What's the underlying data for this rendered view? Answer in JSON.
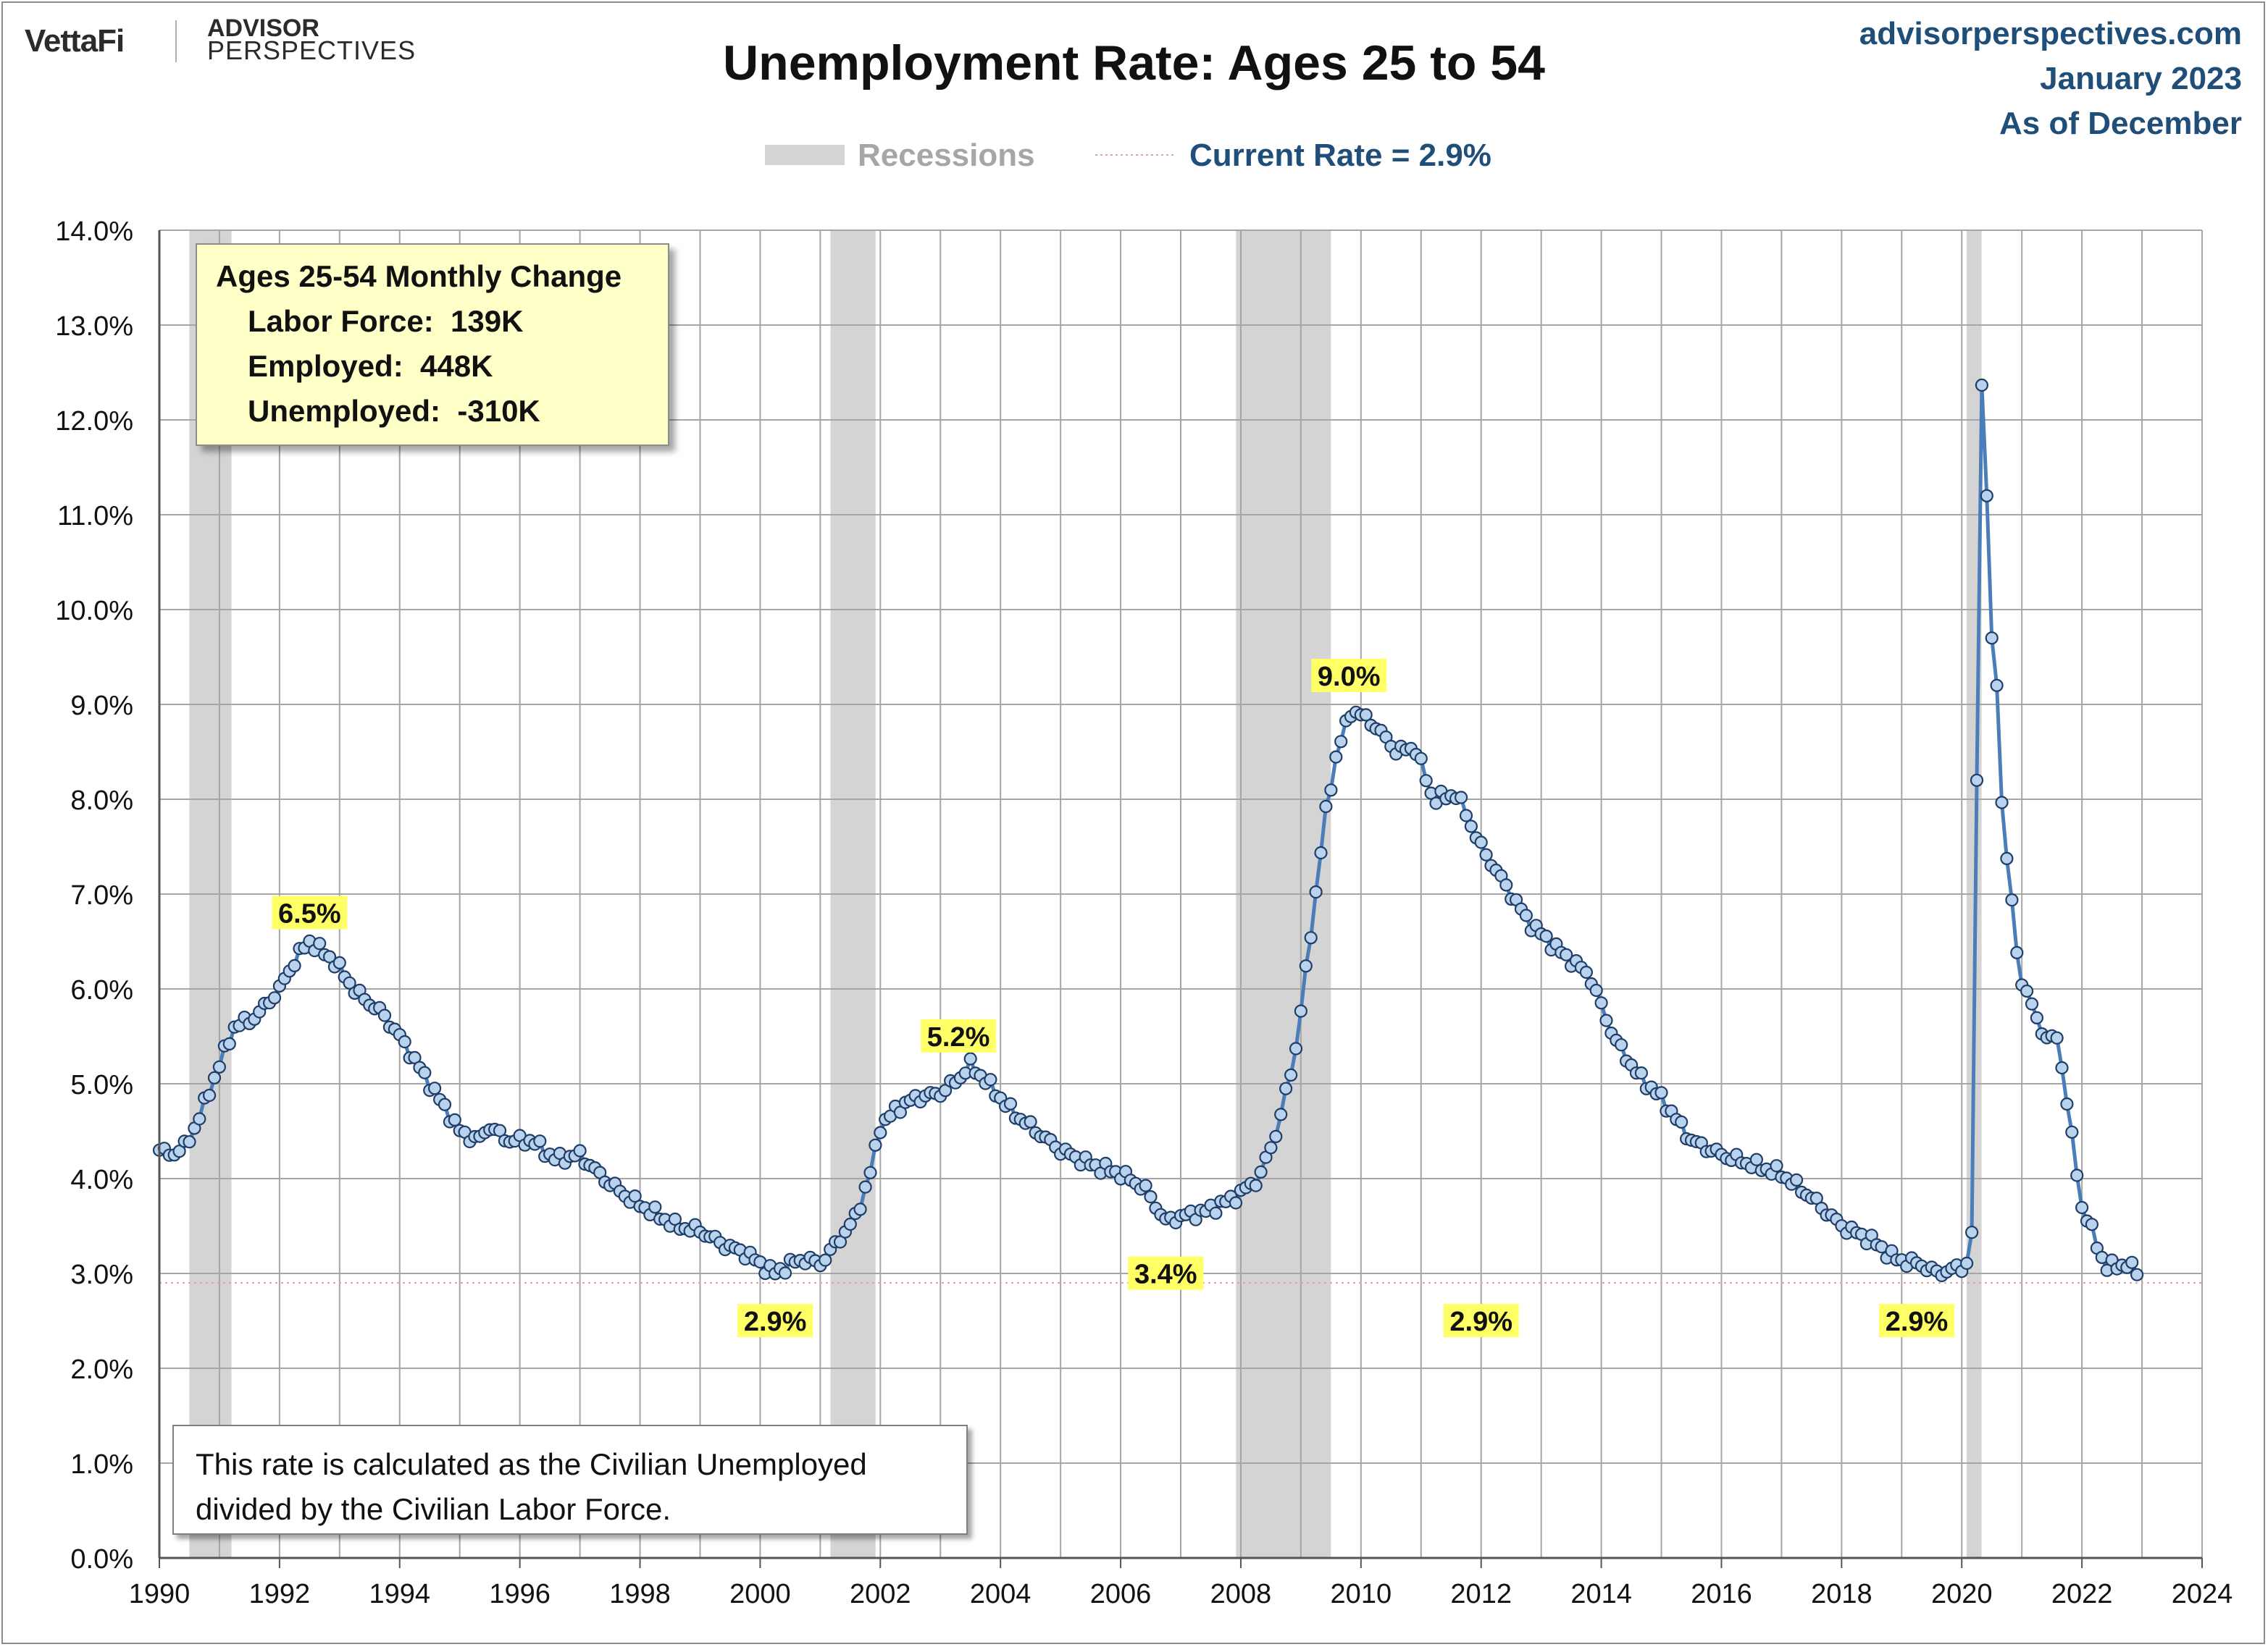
{
  "header": {
    "brand": "VettaFi",
    "partner_line1": "ADVISOR",
    "partner_line2": "PERSPECTIVES",
    "title": "Unemployment Rate: Ages 25 to 54",
    "source_site": "advisorperspectives.com",
    "source_date": "January 2023",
    "source_asof": "As of December"
  },
  "legend": {
    "recessions_label": "Recessions",
    "current_label": "Current Rate = 2.9%"
  },
  "info_box": {
    "title": "Ages 25-54 Monthly Change",
    "labor_force": "Labor Force:  139K",
    "employed": "Employed:  448K",
    "unemployed": "Unemployed:  -310K"
  },
  "note": {
    "line1": "This rate is calculated as the Civilian Unemployed",
    "line2": "divided by the Civilian Labor Force."
  },
  "colors": {
    "line": "#4a7ebb",
    "marker_fill": "#b9d3ee",
    "marker_stroke": "#1f3d66",
    "recession": "#d4d4d4",
    "gridline": "#a6a6a6",
    "current_rate_line": "#e0a0b0",
    "highlight_label_bg": "#ffff66",
    "source_text": "#1f4e79"
  },
  "chart_data": {
    "type": "line",
    "title": "Unemployment Rate: Ages 25 to 54",
    "xlabel": "",
    "ylabel": "",
    "xlim": [
      1990,
      2024
    ],
    "ylim": [
      0,
      14
    ],
    "x_ticks": [
      1990,
      1992,
      1994,
      1996,
      1998,
      2000,
      2002,
      2004,
      2006,
      2008,
      2010,
      2012,
      2014,
      2016,
      2018,
      2020,
      2022,
      2024
    ],
    "y_ticks": [
      "0.0%",
      "1.0%",
      "2.0%",
      "3.0%",
      "4.0%",
      "5.0%",
      "6.0%",
      "7.0%",
      "8.0%",
      "9.0%",
      "10.0%",
      "11.0%",
      "12.0%",
      "13.0%",
      "14.0%"
    ],
    "grid": true,
    "recessions": [
      [
        1990.5,
        1991.2
      ],
      [
        2001.17,
        2001.92
      ],
      [
        2007.92,
        2009.5
      ],
      [
        2020.08,
        2020.33
      ]
    ],
    "current_rate": 2.9,
    "annotations": [
      {
        "text": "6.5%",
        "x": 1992.5,
        "y": 6.5
      },
      {
        "text": "2.9%",
        "x": 2000.25,
        "y": 2.9
      },
      {
        "text": "5.2%",
        "x": 2003.3,
        "y": 5.2
      },
      {
        "text": "3.4%",
        "x": 2006.75,
        "y": 3.4
      },
      {
        "text": "9.0%",
        "x": 2009.8,
        "y": 9.0
      },
      {
        "text": "2.9%",
        "x": 2012.0,
        "y": 2.9
      },
      {
        "text": "2.9%",
        "x": 2019.25,
        "y": 2.9
      }
    ],
    "series": [
      {
        "name": "Unemployment Rate Ages 25-54 (monthly)",
        "start": 1990.0,
        "step_months": 1,
        "anchors": [
          [
            1990.0,
            4.3
          ],
          [
            1990.2,
            4.25
          ],
          [
            1990.45,
            4.35
          ],
          [
            1990.7,
            4.7
          ],
          [
            1991.0,
            5.2
          ],
          [
            1991.25,
            5.6
          ],
          [
            1991.6,
            5.7
          ],
          [
            1992.0,
            6.0
          ],
          [
            1992.3,
            6.35
          ],
          [
            1992.5,
            6.5
          ],
          [
            1992.9,
            6.3
          ],
          [
            1993.3,
            5.95
          ],
          [
            1993.7,
            5.75
          ],
          [
            1994.0,
            5.5
          ],
          [
            1994.3,
            5.2
          ],
          [
            1994.6,
            4.9
          ],
          [
            1995.0,
            4.5
          ],
          [
            1995.3,
            4.4
          ],
          [
            1995.5,
            4.55
          ],
          [
            1995.8,
            4.4
          ],
          [
            1996.2,
            4.4
          ],
          [
            1996.6,
            4.2
          ],
          [
            1997.0,
            4.25
          ],
          [
            1997.4,
            4.0
          ],
          [
            1997.8,
            3.8
          ],
          [
            1998.2,
            3.65
          ],
          [
            1998.6,
            3.5
          ],
          [
            1999.0,
            3.45
          ],
          [
            1999.4,
            3.3
          ],
          [
            1999.8,
            3.2
          ],
          [
            2000.0,
            3.1
          ],
          [
            2000.25,
            3.0
          ],
          [
            2000.5,
            3.1
          ],
          [
            2000.75,
            3.15
          ],
          [
            2001.0,
            3.1
          ],
          [
            2001.25,
            3.3
          ],
          [
            2001.6,
            3.6
          ],
          [
            2001.85,
            4.1
          ],
          [
            2002.0,
            4.55
          ],
          [
            2002.3,
            4.75
          ],
          [
            2002.6,
            4.85
          ],
          [
            2003.0,
            4.9
          ],
          [
            2003.3,
            5.05
          ],
          [
            2003.5,
            5.2
          ],
          [
            2003.8,
            5.0
          ],
          [
            2004.2,
            4.7
          ],
          [
            2004.6,
            4.5
          ],
          [
            2005.0,
            4.3
          ],
          [
            2005.5,
            4.15
          ],
          [
            2006.0,
            4.05
          ],
          [
            2006.4,
            3.9
          ],
          [
            2006.75,
            3.55
          ],
          [
            2007.0,
            3.6
          ],
          [
            2007.4,
            3.65
          ],
          [
            2007.9,
            3.8
          ],
          [
            2008.3,
            4.0
          ],
          [
            2008.6,
            4.5
          ],
          [
            2008.9,
            5.3
          ],
          [
            2009.15,
            6.5
          ],
          [
            2009.4,
            7.8
          ],
          [
            2009.6,
            8.5
          ],
          [
            2009.85,
            8.95
          ],
          [
            2010.2,
            8.8
          ],
          [
            2010.6,
            8.5
          ],
          [
            2010.9,
            8.55
          ],
          [
            2011.2,
            8.0
          ],
          [
            2011.6,
            8.05
          ],
          [
            2012.0,
            7.5
          ],
          [
            2012.4,
            7.1
          ],
          [
            2012.8,
            6.7
          ],
          [
            2013.3,
            6.4
          ],
          [
            2013.8,
            6.15
          ],
          [
            2014.2,
            5.5
          ],
          [
            2014.6,
            5.1
          ],
          [
            2015.0,
            4.85
          ],
          [
            2015.5,
            4.4
          ],
          [
            2016.0,
            4.25
          ],
          [
            2016.5,
            4.15
          ],
          [
            2017.0,
            4.05
          ],
          [
            2017.5,
            3.8
          ],
          [
            2018.0,
            3.5
          ],
          [
            2018.5,
            3.35
          ],
          [
            2018.9,
            3.15
          ],
          [
            2019.3,
            3.1
          ],
          [
            2019.6,
            3.0
          ],
          [
            2019.9,
            3.05
          ],
          [
            2020.1,
            3.1
          ],
          [
            2020.2,
            3.6
          ],
          [
            2020.3,
            12.8
          ],
          [
            2020.4,
            11.5
          ],
          [
            2020.5,
            9.7
          ],
          [
            2020.6,
            9.1
          ],
          [
            2020.7,
            7.5
          ],
          [
            2020.8,
            7.2
          ],
          [
            2020.9,
            6.4
          ],
          [
            2021.0,
            6.1
          ],
          [
            2021.3,
            5.6
          ],
          [
            2021.45,
            5.45
          ],
          [
            2021.6,
            5.5
          ],
          [
            2021.75,
            4.8
          ],
          [
            2022.0,
            3.7
          ],
          [
            2022.2,
            3.4
          ],
          [
            2022.4,
            3.05
          ],
          [
            2022.6,
            3.1
          ],
          [
            2022.9,
            3.05
          ],
          [
            2023.0,
            2.9
          ]
        ]
      }
    ]
  }
}
